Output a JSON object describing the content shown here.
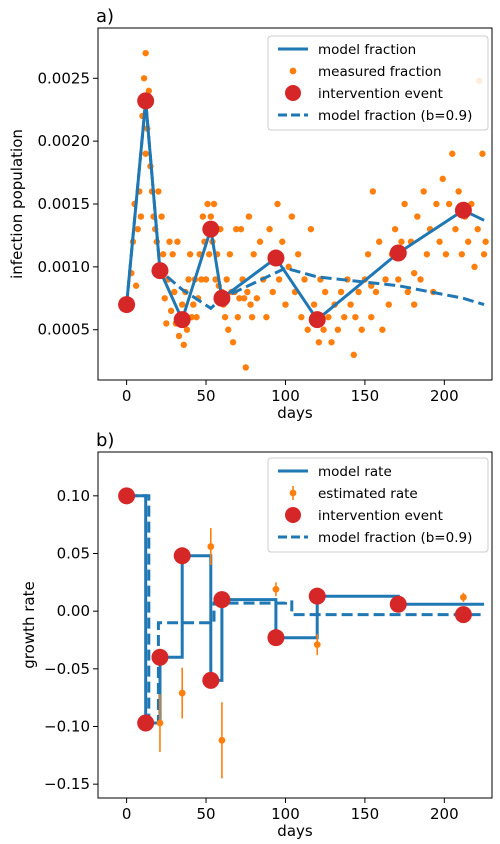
{
  "colors": {
    "model": "#1f77b4",
    "measured": "#ff7f0e",
    "event": "#d62728"
  },
  "chart_data": [
    {
      "type": "scatter",
      "panel_label": "a)",
      "xlabel": "days",
      "ylabel": "infection population",
      "xlim": [
        -18,
        230
      ],
      "ylim": [
        0.0001,
        0.0029
      ],
      "xticks": [
        0,
        50,
        100,
        150,
        200
      ],
      "xtick_labels": [
        "0",
        "50",
        "100",
        "150",
        "200"
      ],
      "yticks": [
        0.0005,
        0.001,
        0.0015,
        0.002,
        0.0025
      ],
      "ytick_labels": [
        "0.0005",
        "0.0010",
        "0.0015",
        "0.0020",
        "0.0025"
      ],
      "grid": false,
      "legend_position": "top-right",
      "legend": [
        "model fraction",
        "measured fraction",
        "intervention event",
        "model fraction (b=0.9)"
      ],
      "series": [
        {
          "name": "model fraction",
          "kind": "line",
          "x": [
            0,
            12,
            21,
            35,
            53,
            60,
            94,
            120,
            171,
            212,
            225
          ],
          "y": [
            0.0007,
            0.00232,
            0.00097,
            0.00058,
            0.0013,
            0.00075,
            0.00107,
            0.00058,
            0.00111,
            0.00145,
            0.00137
          ]
        },
        {
          "name": "measured fraction",
          "kind": "scatter",
          "points": [
            [
              2,
              0.00072
            ],
            [
              3,
              0.00095
            ],
            [
              4,
              0.0012
            ],
            [
              5,
              0.0015
            ],
            [
              6,
              0.00085
            ],
            [
              7,
              0.0013
            ],
            [
              8,
              0.0016
            ],
            [
              9,
              0.0014
            ],
            [
              10,
              0.0022
            ],
            [
              11,
              0.0025
            ],
            [
              12,
              0.0027
            ],
            [
              12,
              0.0019
            ],
            [
              13,
              0.0021
            ],
            [
              14,
              0.0024
            ],
            [
              15,
              0.0018
            ],
            [
              16,
              0.0016
            ],
            [
              17,
              0.0014
            ],
            [
              18,
              0.0013
            ],
            [
              19,
              0.0012
            ],
            [
              20,
              0.0016
            ],
            [
              21,
              0.00095
            ],
            [
              22,
              0.0014
            ],
            [
              23,
              0.0011
            ],
            [
              24,
              0.00075
            ],
            [
              25,
              0.00055
            ],
            [
              26,
              0.0009
            ],
            [
              27,
              0.0012
            ],
            [
              28,
              0.00065
            ],
            [
              29,
              0.0011
            ],
            [
              30,
              0.0008
            ],
            [
              31,
              0.00055
            ],
            [
              32,
              0.0012
            ],
            [
              33,
              0.00045
            ],
            [
              34,
              0.0006
            ],
            [
              35,
              0.0007
            ],
            [
              36,
              0.00038
            ],
            [
              37,
              0.0008
            ],
            [
              38,
              0.0005
            ],
            [
              39,
              0.0009
            ],
            [
              40,
              0.0011
            ],
            [
              41,
              0.0006
            ],
            [
              42,
              0.0007
            ],
            [
              43,
              0.0009
            ],
            [
              44,
              0.0006
            ],
            [
              45,
              0.00075
            ],
            [
              46,
              0.0011
            ],
            [
              47,
              0.0009
            ],
            [
              48,
              0.0014
            ],
            [
              49,
              0.0012
            ],
            [
              50,
              0.0009
            ],
            [
              51,
              0.0015
            ],
            [
              52,
              0.0011
            ],
            [
              53,
              0.0014
            ],
            [
              54,
              0.0012
            ],
            [
              55,
              0.0015
            ],
            [
              56,
              0.0009
            ],
            [
              57,
              0.0011
            ],
            [
              58,
              0.00085
            ],
            [
              59,
              0.0013
            ],
            [
              60,
              0.0008
            ],
            [
              61,
              0.0007
            ],
            [
              62,
              0.0006
            ],
            [
              63,
              0.0009
            ],
            [
              64,
              0.0005
            ],
            [
              65,
              0.0011
            ],
            [
              66,
              0.0008
            ],
            [
              67,
              0.0004
            ],
            [
              68,
              0.0008
            ],
            [
              69,
              0.0013
            ],
            [
              70,
              0.0006
            ],
            [
              71,
              0.00075
            ],
            [
              72,
              0.0013
            ],
            [
              73,
              0.0009
            ],
            [
              74,
              0.00075
            ],
            [
              75,
              0.0002
            ],
            [
              76,
              0.0008
            ],
            [
              77,
              0.0014
            ],
            [
              78,
              0.0007
            ],
            [
              79,
              0.0006
            ],
            [
              80,
              0.0011
            ],
            [
              82,
              0.00075
            ],
            [
              84,
              0.0012
            ],
            [
              86,
              0.0009
            ],
            [
              88,
              0.0006
            ],
            [
              90,
              0.0013
            ],
            [
              92,
              0.0008
            ],
            [
              94,
              0.0011
            ],
            [
              95,
              0.0015
            ],
            [
              96,
              0.0009
            ],
            [
              98,
              0.0012
            ],
            [
              100,
              0.0007
            ],
            [
              102,
              0.001
            ],
            [
              104,
              0.0014
            ],
            [
              106,
              0.0008
            ],
            [
              108,
              0.0011
            ],
            [
              110,
              0.0006
            ],
            [
              112,
              0.0009
            ],
            [
              114,
              0.0005
            ],
            [
              116,
              0.0013
            ],
            [
              118,
              0.0007
            ],
            [
              120,
              0.0006
            ],
            [
              121,
              0.0004
            ],
            [
              122,
              0.0009
            ],
            [
              124,
              0.0005
            ],
            [
              125,
              0.0008
            ],
            [
              127,
              0.0006
            ],
            [
              129,
              0.0004
            ],
            [
              131,
              0.0007
            ],
            [
              133,
              0.0005
            ],
            [
              135,
              0.0008
            ],
            [
              137,
              0.0006
            ],
            [
              139,
              0.0009
            ],
            [
              141,
              0.0007
            ],
            [
              143,
              0.0003
            ],
            [
              144,
              0.0006
            ],
            [
              146,
              0.0008
            ],
            [
              148,
              0.0005
            ],
            [
              150,
              0.0009
            ],
            [
              152,
              0.0011
            ],
            [
              154,
              0.0006
            ],
            [
              155,
              0.0016
            ],
            [
              157,
              0.0008
            ],
            [
              159,
              0.0012
            ],
            [
              161,
              0.0005
            ],
            [
              163,
              0.0009
            ],
            [
              165,
              0.0007
            ],
            [
              167,
              0.0011
            ],
            [
              169,
              0.0013
            ],
            [
              171,
              0.0009
            ],
            [
              173,
              0.0012
            ],
            [
              175,
              0.0015
            ],
            [
              177,
              0.0008
            ],
            [
              179,
              0.0012
            ],
            [
              181,
              0.0007
            ],
            [
              183,
              0.0014
            ],
            [
              185,
              0.0009
            ],
            [
              187,
              0.0016
            ],
            [
              189,
              0.0011
            ],
            [
              191,
              0.0013
            ],
            [
              193,
              0.0008
            ],
            [
              195,
              0.0015
            ],
            [
              197,
              0.0012
            ],
            [
              199,
              0.0017
            ],
            [
              201,
              0.0011
            ],
            [
              203,
              0.0015
            ],
            [
              205,
              0.0019
            ],
            [
              207,
              0.0013
            ],
            [
              209,
              0.0016
            ],
            [
              211,
              0.0011
            ],
            [
              213,
              0.0014
            ],
            [
              215,
              0.0012
            ],
            [
              217,
              0.0015
            ],
            [
              219,
              0.001
            ],
            [
              221,
              0.0013
            ],
            [
              222,
              0.00248
            ],
            [
              224,
              0.0019
            ],
            [
              225,
              0.0011
            ],
            [
              226,
              0.0012
            ],
            [
              181,
              0.00095
            ],
            [
              154,
              0.00085
            ]
          ]
        },
        {
          "name": "intervention event",
          "kind": "events",
          "x": [
            0,
            12,
            21,
            35,
            53,
            60,
            94,
            120,
            171,
            212
          ],
          "y": [
            0.0007,
            0.00232,
            0.00097,
            0.00058,
            0.0013,
            0.00075,
            0.00107,
            0.00058,
            0.00111,
            0.00145
          ]
        },
        {
          "name": "model fraction (b=0.9)",
          "kind": "dashed",
          "x": [
            0,
            12,
            21,
            35,
            53,
            60,
            100,
            120,
            171,
            212,
            225
          ],
          "y": [
            0.0007,
            0.00232,
            0.00097,
            0.00082,
            0.00067,
            0.00075,
            0.00099,
            0.00092,
            0.00085,
            0.00075,
            0.0007
          ]
        }
      ]
    },
    {
      "type": "line",
      "panel_label": "b)",
      "xlabel": "days",
      "ylabel": "growth rate",
      "xlim": [
        -18,
        230
      ],
      "ylim": [
        -0.162,
        0.138
      ],
      "xticks": [
        0,
        50,
        100,
        150,
        200
      ],
      "xtick_labels": [
        "0",
        "50",
        "100",
        "150",
        "200"
      ],
      "yticks": [
        -0.15,
        -0.1,
        -0.05,
        0.0,
        0.05,
        0.1
      ],
      "ytick_labels": [
        "−0.15",
        "−0.10",
        "−0.05",
        "0.00",
        "0.05",
        "0.10"
      ],
      "grid": false,
      "legend_position": "top-right",
      "legend": [
        "model rate",
        "estimated rate",
        "intervention event",
        "model fraction (b=0.9)"
      ],
      "series": [
        {
          "name": "model rate",
          "kind": "step",
          "x": [
            0,
            12,
            12,
            21,
            21,
            35,
            35,
            53,
            53,
            60,
            60,
            94,
            94,
            120,
            120,
            171,
            171,
            225
          ],
          "y": [
            0.1,
            0.1,
            -0.097,
            -0.097,
            -0.04,
            -0.04,
            0.048,
            0.048,
            -0.06,
            -0.06,
            0.01,
            0.01,
            -0.023,
            -0.023,
            0.013,
            0.013,
            0.006,
            0.006
          ]
        },
        {
          "name": "estimated rate",
          "kind": "errorbar",
          "x": [
            21,
            35,
            53,
            60,
            94,
            120,
            212
          ],
          "y": [
            -0.097,
            -0.071,
            0.056,
            -0.112,
            0.019,
            -0.029,
            0.012
          ],
          "err": [
            0.025,
            0.022,
            0.016,
            0.033,
            0.006,
            0.009,
            0.004
          ]
        },
        {
          "name": "intervention event",
          "kind": "events",
          "x": [
            0,
            12,
            21,
            35,
            53,
            60,
            94,
            120,
            171,
            212
          ],
          "y": [
            0.1,
            -0.097,
            -0.04,
            0.048,
            -0.06,
            0.01,
            -0.023,
            0.013,
            0.006,
            -0.003
          ]
        },
        {
          "name": "model fraction (b=0.9)",
          "kind": "dashed-step",
          "x": [
            0,
            14,
            14,
            20,
            20,
            30,
            30,
            55,
            55,
            100,
            100,
            104,
            104,
            225
          ],
          "y": [
            0.1,
            0.1,
            -0.097,
            -0.097,
            -0.01,
            -0.01,
            -0.01,
            -0.01,
            0.007,
            0.007,
            0.008,
            0.008,
            -0.003,
            -0.003
          ]
        }
      ]
    }
  ]
}
